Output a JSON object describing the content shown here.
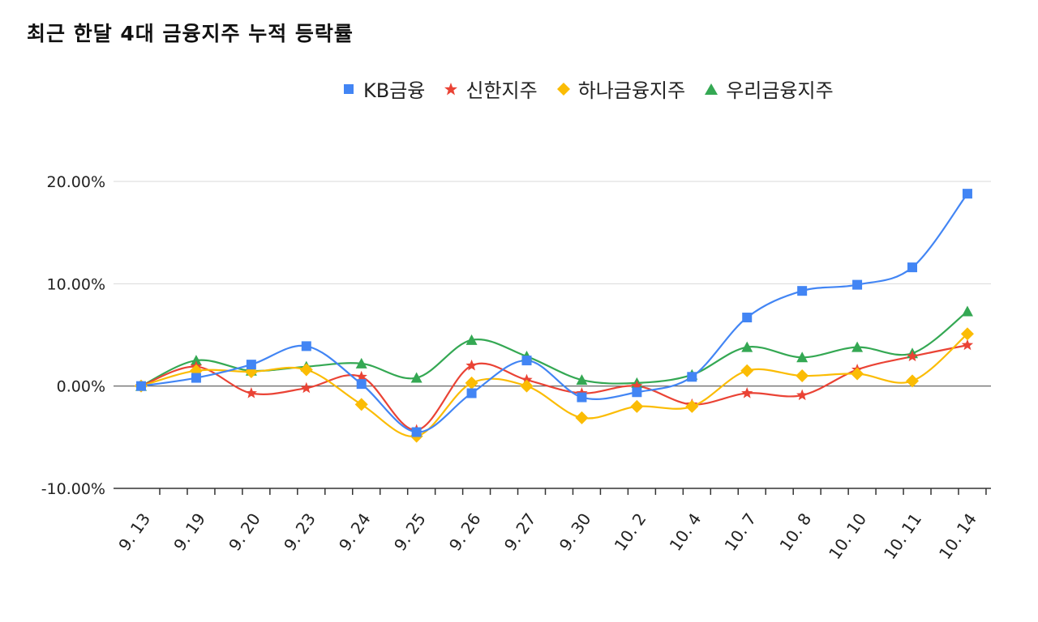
{
  "chart_data": {
    "type": "line",
    "title": "최근 한달 4대 금융지주 누적 등락률",
    "xlabel": "",
    "ylabel": "",
    "categories": [
      "9. 13",
      "9. 19",
      "9. 20",
      "9. 23",
      "9. 24",
      "9. 25",
      "9. 26",
      "9. 27",
      "9. 30",
      "10. 2",
      "10. 4",
      "10. 7",
      "10. 8",
      "10. 10",
      "10. 11",
      "10. 14"
    ],
    "ylim": [
      -10,
      20
    ],
    "yticks": [
      {
        "value": 20,
        "label": "20.00%"
      },
      {
        "value": 10,
        "label": "10.00%"
      },
      {
        "value": 0,
        "label": "0.00%"
      },
      {
        "value": -10,
        "label": "-10.00%"
      }
    ],
    "grid": true,
    "legend_position": "top",
    "series": [
      {
        "name": "KB금융",
        "color": "#4285F4",
        "marker": "square",
        "values": [
          0,
          0.8,
          2.1,
          3.9,
          0.2,
          -4.5,
          -0.7,
          2.5,
          -1.1,
          -0.6,
          0.9,
          6.7,
          9.3,
          9.9,
          11.6,
          18.8
        ]
      },
      {
        "name": "신한지주",
        "color": "#EA4335",
        "marker": "star",
        "values": [
          0,
          1.9,
          -0.7,
          -0.2,
          0.9,
          -4.3,
          2.0,
          0.6,
          -0.7,
          0.0,
          -1.8,
          -0.7,
          -0.9,
          1.6,
          2.9,
          4.0
        ]
      },
      {
        "name": "하나금융지주",
        "color": "#FBBC04",
        "marker": "diamond",
        "values": [
          0,
          1.5,
          1.4,
          1.6,
          -1.8,
          -4.9,
          0.3,
          0.0,
          -3.1,
          -2.0,
          -2.0,
          1.5,
          1.0,
          1.2,
          0.5,
          5.1
        ]
      },
      {
        "name": "우리금융지주",
        "color": "#34A853",
        "marker": "triangle",
        "values": [
          0,
          2.5,
          1.5,
          1.9,
          2.2,
          0.8,
          4.5,
          2.9,
          0.6,
          0.3,
          1.1,
          3.8,
          2.8,
          3.8,
          3.2,
          7.3
        ]
      }
    ]
  }
}
